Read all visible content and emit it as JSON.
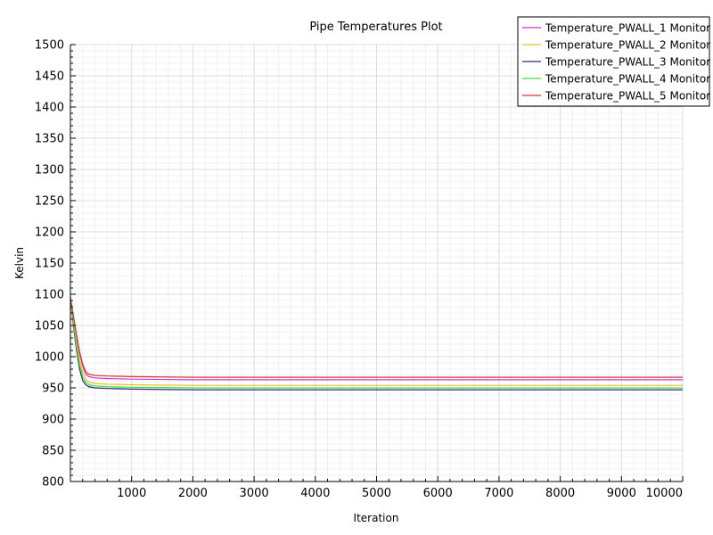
{
  "chart_data": {
    "type": "line",
    "title": "Pipe Temperatures Plot",
    "xlabel": "Iteration",
    "ylabel": "Kelvin",
    "xlim": [
      0,
      10000
    ],
    "ylim": [
      800,
      1500
    ],
    "xticks": [
      1000,
      2000,
      3000,
      4000,
      5000,
      6000,
      7000,
      8000,
      9000,
      10000
    ],
    "yticks": [
      800,
      850,
      900,
      950,
      1000,
      1050,
      1100,
      1150,
      1200,
      1250,
      1300,
      1350,
      1400,
      1450,
      1500
    ],
    "grid": true,
    "legend_position": "top-right",
    "series": [
      {
        "name": "Temperature_PWALL_1 Monitor",
        "color": "#cc33cc",
        "x": [
          0,
          50,
          100,
          150,
          200,
          250,
          300,
          400,
          600,
          1000,
          1500,
          2000,
          10000
        ],
        "y": [
          1095,
          1060,
          1030,
          1005,
          985,
          972,
          968,
          966,
          965,
          964,
          963.5,
          963,
          963
        ]
      },
      {
        "name": "Temperature_PWALL_2 Monitor",
        "color": "#e6c020",
        "x": [
          0,
          50,
          100,
          150,
          200,
          250,
          300,
          400,
          600,
          1000,
          1500,
          2000,
          10000
        ],
        "y": [
          1095,
          1055,
          1022,
          995,
          975,
          964,
          959,
          957,
          956,
          955,
          954.5,
          954,
          954
        ]
      },
      {
        "name": "Temperature_PWALL_3 Monitor",
        "color": "#2a2a80",
        "x": [
          0,
          50,
          100,
          150,
          200,
          250,
          300,
          400,
          600,
          1000,
          1500,
          2000,
          10000
        ],
        "y": [
          1095,
          1048,
          1010,
          980,
          962,
          955,
          952,
          950,
          949,
          948,
          947.5,
          947,
          947
        ]
      },
      {
        "name": "Temperature_PWALL_4 Monitor",
        "color": "#44dd44",
        "x": [
          0,
          50,
          100,
          150,
          200,
          250,
          300,
          400,
          600,
          1000,
          1500,
          2000,
          10000
        ],
        "y": [
          1095,
          1052,
          1016,
          987,
          968,
          959,
          955,
          953,
          952,
          951,
          950.5,
          950,
          950
        ]
      },
      {
        "name": "Temperature_PWALL_5 Monitor",
        "color": "#e03030",
        "x": [
          0,
          50,
          100,
          150,
          200,
          250,
          300,
          400,
          600,
          1000,
          1500,
          2000,
          10000
        ],
        "y": [
          1095,
          1065,
          1035,
          1008,
          988,
          976,
          972,
          970,
          969,
          968,
          967.5,
          967,
          967
        ]
      }
    ]
  }
}
